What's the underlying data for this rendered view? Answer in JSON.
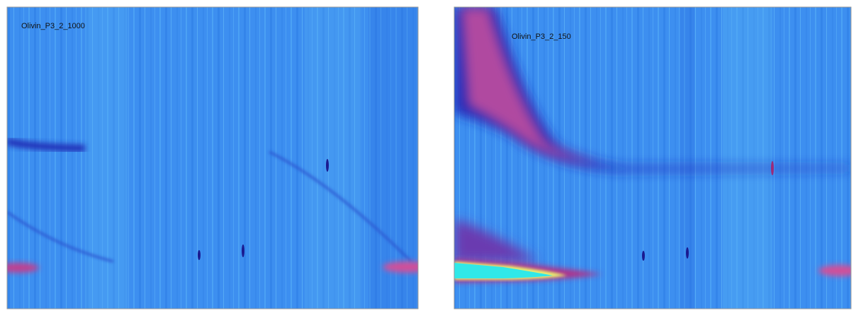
{
  "panels": [
    {
      "title": "Olivin_P3_2_1000"
    },
    {
      "title": "Olivin_P3_2_150"
    }
  ]
}
